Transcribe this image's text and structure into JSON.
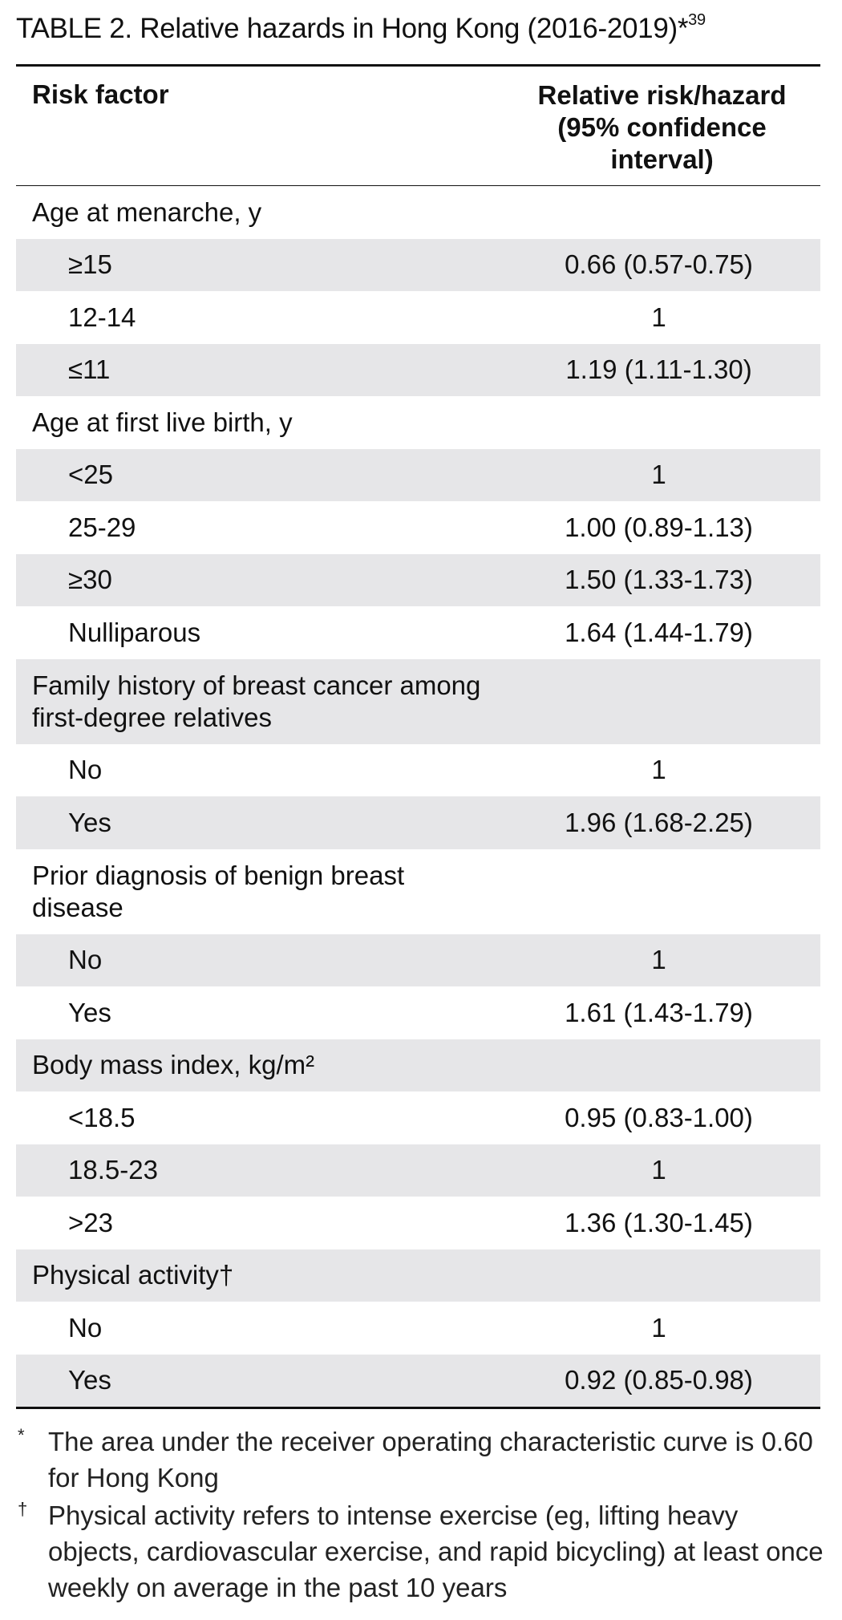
{
  "title": {
    "main": "TABLE 2.  Relative hazards in Hong Kong (2016-2019)*",
    "ref": "39"
  },
  "columns": {
    "factor": "Risk factor",
    "risk": "Relative risk/hazard (95% confidence interval)"
  },
  "rows": [
    {
      "label": "Age at menarche, y",
      "value": ""
    },
    {
      "label": "≥15",
      "value": "0.66 (0.57-0.75)"
    },
    {
      "label": "12-14",
      "value": "1"
    },
    {
      "label": "≤11",
      "value": "1.19 (1.11-1.30)"
    },
    {
      "label": "Age at first live birth, y",
      "value": ""
    },
    {
      "label": "<25",
      "value": "1"
    },
    {
      "label": "25-29",
      "value": "1.00 (0.89-1.13)"
    },
    {
      "label": "≥30",
      "value": "1.50 (1.33-1.73)"
    },
    {
      "label": "Nulliparous",
      "value": "1.64 (1.44-1.79)"
    },
    {
      "label": "Family history of breast cancer among first-degree relatives",
      "value": ""
    },
    {
      "label": "No",
      "value": "1"
    },
    {
      "label": "Yes",
      "value": "1.96 (1.68-2.25)"
    },
    {
      "label": "Prior diagnosis of benign breast disease",
      "value": ""
    },
    {
      "label": "No",
      "value": "1"
    },
    {
      "label": "Yes",
      "value": "1.61 (1.43-1.79)"
    },
    {
      "label": "Body mass index, kg/m²",
      "value": ""
    },
    {
      "label": "<18.5",
      "value": "0.95 (0.83-1.00)"
    },
    {
      "label": "18.5-23",
      "value": "1"
    },
    {
      "label": ">23",
      "value": "1.36 (1.30-1.45)"
    },
    {
      "label": "Physical activity†",
      "value": ""
    },
    {
      "label": "No",
      "value": "1"
    },
    {
      "label": "Yes",
      "value": "0.92 (0.85-0.98)"
    }
  ],
  "footnotes": [
    {
      "mark": "*",
      "text": "The area under the receiver operating characteristic curve is 0.60 for Hong Kong"
    },
    {
      "mark": "†",
      "text": "Physical activity refers to intense exercise (eg, lifting heavy objects, cardiovascular exercise, and rapid bicycling) at least once weekly on average in the past 10 years"
    }
  ]
}
